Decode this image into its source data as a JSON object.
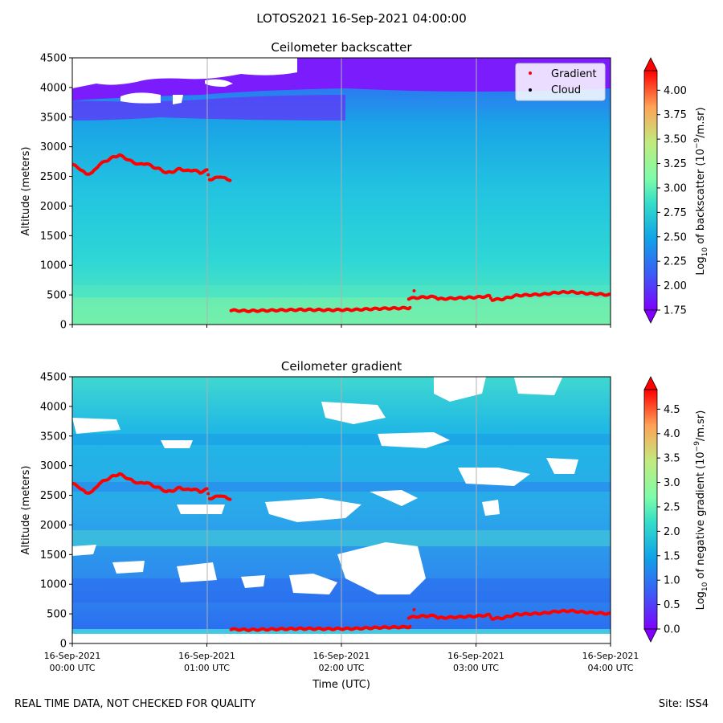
{
  "figure": {
    "title": "LOTOS2021 16-Sep-2021 04:00:00",
    "footer_left": "REAL TIME DATA, NOT CHECKED FOR QUALITY",
    "footer_right": "Site: ISS4"
  },
  "chart_data": [
    {
      "type": "heatmap",
      "title": "Ceilometer backscatter",
      "ylabel": "Altitude (meters)",
      "ylim": [
        0,
        4500
      ],
      "yticks": [
        0,
        500,
        1000,
        1500,
        2000,
        2500,
        3000,
        3500,
        4000,
        4500
      ],
      "xlim_hours": [
        0,
        4
      ],
      "xticks_hours": [
        0,
        1,
        2,
        3,
        4
      ],
      "grid": "vertical",
      "legend": {
        "position": "top-right",
        "entries": [
          {
            "label": "Gradient",
            "color": "#ff0000"
          },
          {
            "label": "Cloud",
            "color": "#000000"
          }
        ]
      },
      "colorbar": {
        "label": "Log10 of backscatter (10^-9/m.sr)",
        "min": 1.75,
        "max": 4.2,
        "ticks": [
          "1.75",
          "2.00",
          "2.25",
          "2.50",
          "2.75",
          "3.00",
          "3.25",
          "3.50",
          "3.75",
          "4.00"
        ],
        "tick_values": [
          1.75,
          2.0,
          2.25,
          2.5,
          2.75,
          3.0,
          3.25,
          3.5,
          3.75,
          4.0
        ]
      },
      "gradient_layers_hours_m": [
        [
          [
            0.0,
            2700
          ],
          [
            0.05,
            2640
          ],
          [
            0.1,
            2540
          ],
          [
            0.15,
            2560
          ],
          [
            0.2,
            2700
          ],
          [
            0.3,
            2820
          ],
          [
            0.35,
            2860
          ],
          [
            0.4,
            2800
          ],
          [
            0.45,
            2740
          ],
          [
            0.5,
            2700
          ],
          [
            0.55,
            2720
          ],
          [
            0.6,
            2660
          ],
          [
            0.65,
            2620
          ],
          [
            0.7,
            2560
          ],
          [
            0.75,
            2580
          ],
          [
            0.8,
            2630
          ],
          [
            0.85,
            2590
          ],
          [
            0.9,
            2610
          ],
          [
            0.95,
            2560
          ],
          [
            1.0,
            2600
          ],
          [
            1.02,
            2450
          ],
          [
            1.05,
            2460
          ],
          [
            1.1,
            2500
          ],
          [
            1.15,
            2450
          ],
          [
            1.18,
            2440
          ]
        ],
        [
          [
            1.18,
            240
          ],
          [
            1.3,
            230
          ],
          [
            1.5,
            240
          ],
          [
            1.7,
            250
          ],
          [
            1.9,
            245
          ],
          [
            2.1,
            250
          ],
          [
            2.3,
            270
          ],
          [
            2.5,
            280
          ],
          [
            2.52,
            300
          ]
        ],
        [
          [
            2.5,
            440
          ],
          [
            2.6,
            460
          ],
          [
            2.7,
            470
          ],
          [
            2.72,
            430
          ],
          [
            2.8,
            440
          ],
          [
            3.0,
            460
          ],
          [
            3.1,
            480
          ],
          [
            3.12,
            420
          ],
          [
            3.2,
            430
          ],
          [
            3.3,
            490
          ],
          [
            3.5,
            510
          ],
          [
            3.6,
            540
          ],
          [
            3.7,
            550
          ],
          [
            3.8,
            530
          ],
          [
            4.0,
            500
          ]
        ]
      ],
      "gradient_outliers_hours_m": [
        [
          2.54,
          570
        ]
      ]
    },
    {
      "type": "heatmap",
      "title": "Ceilometer gradient",
      "ylabel": "Altitude (meters)",
      "xlabel": "Time (UTC)",
      "ylim": [
        0,
        4500
      ],
      "yticks": [
        0,
        500,
        1000,
        1500,
        2000,
        2500,
        3000,
        3500,
        4000,
        4500
      ],
      "xlim_hours": [
        0,
        4
      ],
      "xticks_hours": [
        0,
        1,
        2,
        3,
        4
      ],
      "xtick_labels": [
        [
          "16-Sep-2021",
          "00:00 UTC"
        ],
        [
          "16-Sep-2021",
          "01:00 UTC"
        ],
        [
          "16-Sep-2021",
          "02:00 UTC"
        ],
        [
          "16-Sep-2021",
          "03:00 UTC"
        ],
        [
          "16-Sep-2021",
          "04:00 UTC"
        ]
      ],
      "grid": "vertical",
      "colorbar": {
        "label": "Log10 of negative gradient (10^-9/m.sr)",
        "min": 0.0,
        "max": 4.9,
        "ticks": [
          "0.0",
          "0.5",
          "1.0",
          "1.5",
          "2.0",
          "2.5",
          "3.0",
          "3.5",
          "4.0",
          "4.5"
        ],
        "tick_values": [
          0.0,
          0.5,
          1.0,
          1.5,
          2.0,
          2.5,
          3.0,
          3.5,
          4.0,
          4.5
        ]
      },
      "gradient_layers_hours_m": [
        [
          [
            0.0,
            2700
          ],
          [
            0.05,
            2640
          ],
          [
            0.1,
            2540
          ],
          [
            0.15,
            2560
          ],
          [
            0.2,
            2700
          ],
          [
            0.3,
            2820
          ],
          [
            0.35,
            2860
          ],
          [
            0.4,
            2800
          ],
          [
            0.45,
            2740
          ],
          [
            0.5,
            2700
          ],
          [
            0.55,
            2720
          ],
          [
            0.6,
            2660
          ],
          [
            0.65,
            2620
          ],
          [
            0.7,
            2560
          ],
          [
            0.75,
            2580
          ],
          [
            0.8,
            2630
          ],
          [
            0.85,
            2590
          ],
          [
            0.9,
            2610
          ],
          [
            0.95,
            2560
          ],
          [
            1.0,
            2600
          ],
          [
            1.02,
            2450
          ],
          [
            1.05,
            2460
          ],
          [
            1.1,
            2500
          ],
          [
            1.15,
            2450
          ],
          [
            1.18,
            2440
          ]
        ],
        [
          [
            1.18,
            240
          ],
          [
            1.3,
            230
          ],
          [
            1.5,
            240
          ],
          [
            1.7,
            250
          ],
          [
            1.9,
            245
          ],
          [
            2.1,
            250
          ],
          [
            2.3,
            270
          ],
          [
            2.5,
            280
          ],
          [
            2.52,
            300
          ]
        ],
        [
          [
            2.5,
            440
          ],
          [
            2.6,
            460
          ],
          [
            2.7,
            470
          ],
          [
            2.72,
            430
          ],
          [
            2.8,
            440
          ],
          [
            3.0,
            460
          ],
          [
            3.1,
            480
          ],
          [
            3.12,
            420
          ],
          [
            3.2,
            430
          ],
          [
            3.3,
            490
          ],
          [
            3.5,
            510
          ],
          [
            3.6,
            540
          ],
          [
            3.7,
            550
          ],
          [
            3.8,
            530
          ],
          [
            4.0,
            500
          ]
        ]
      ],
      "gradient_outliers_hours_m": [
        [
          2.54,
          570
        ]
      ]
    }
  ]
}
